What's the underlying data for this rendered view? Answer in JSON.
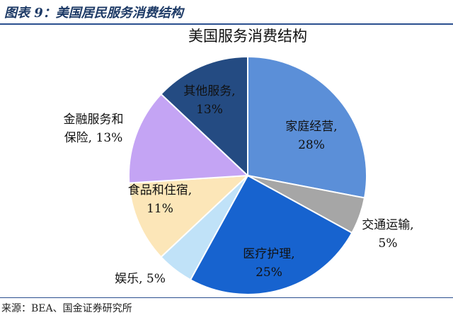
{
  "header": {
    "caption": "图表 9：美国居民服务消费结构"
  },
  "chart_data": {
    "type": "pie",
    "title": "美国服务消费结构",
    "categories": [
      "家庭经营,",
      "交通运输,",
      "医疗护理,",
      "娱乐,",
      "食品和住宿,",
      "金融服务和保险,",
      "其他服务,"
    ],
    "values": [
      28,
      5,
      25,
      5,
      11,
      13,
      13
    ],
    "value_labels": [
      "28%",
      "5%",
      "25%",
      "5%",
      "11%",
      "13%",
      "13%"
    ],
    "colors": [
      "#5b8fd8",
      "#a6a6a6",
      "#1763cf",
      "#c0e2f8",
      "#fce6b8",
      "#c4a4f4",
      "#244b82"
    ]
  },
  "footer": {
    "source": "来源：BEA、国金证券研究所"
  }
}
